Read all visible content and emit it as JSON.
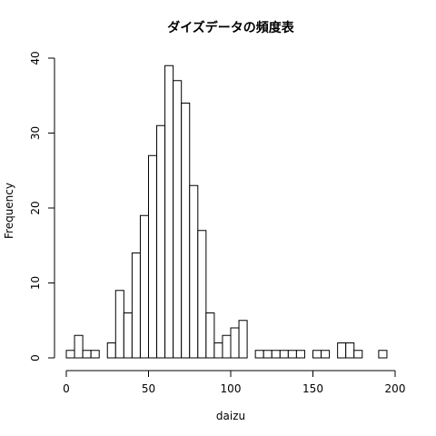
{
  "chart_data": {
    "type": "bar",
    "title": "ダイズデータの頻度表",
    "xlabel": "daizu",
    "ylabel": "Frequency",
    "bin_width": 5,
    "bins": [
      {
        "start": 0,
        "end": 5,
        "count": 1
      },
      {
        "start": 5,
        "end": 10,
        "count": 3
      },
      {
        "start": 10,
        "end": 15,
        "count": 1
      },
      {
        "start": 15,
        "end": 20,
        "count": 1
      },
      {
        "start": 20,
        "end": 25,
        "count": 0
      },
      {
        "start": 25,
        "end": 30,
        "count": 2
      },
      {
        "start": 30,
        "end": 35,
        "count": 9
      },
      {
        "start": 35,
        "end": 40,
        "count": 6
      },
      {
        "start": 40,
        "end": 45,
        "count": 14
      },
      {
        "start": 45,
        "end": 50,
        "count": 19
      },
      {
        "start": 50,
        "end": 55,
        "count": 27
      },
      {
        "start": 55,
        "end": 60,
        "count": 31
      },
      {
        "start": 60,
        "end": 65,
        "count": 39
      },
      {
        "start": 65,
        "end": 70,
        "count": 37
      },
      {
        "start": 70,
        "end": 75,
        "count": 34
      },
      {
        "start": 75,
        "end": 80,
        "count": 23
      },
      {
        "start": 80,
        "end": 85,
        "count": 17
      },
      {
        "start": 85,
        "end": 90,
        "count": 6
      },
      {
        "start": 90,
        "end": 95,
        "count": 2
      },
      {
        "start": 95,
        "end": 100,
        "count": 3
      },
      {
        "start": 100,
        "end": 105,
        "count": 4
      },
      {
        "start": 105,
        "end": 110,
        "count": 5
      },
      {
        "start": 110,
        "end": 115,
        "count": 0
      },
      {
        "start": 115,
        "end": 120,
        "count": 1
      },
      {
        "start": 120,
        "end": 125,
        "count": 1
      },
      {
        "start": 125,
        "end": 130,
        "count": 1
      },
      {
        "start": 130,
        "end": 135,
        "count": 1
      },
      {
        "start": 135,
        "end": 140,
        "count": 1
      },
      {
        "start": 140,
        "end": 145,
        "count": 1
      },
      {
        "start": 145,
        "end": 150,
        "count": 0
      },
      {
        "start": 150,
        "end": 155,
        "count": 1
      },
      {
        "start": 155,
        "end": 160,
        "count": 1
      },
      {
        "start": 160,
        "end": 165,
        "count": 0
      },
      {
        "start": 165,
        "end": 170,
        "count": 2
      },
      {
        "start": 170,
        "end": 175,
        "count": 2
      },
      {
        "start": 175,
        "end": 180,
        "count": 1
      },
      {
        "start": 180,
        "end": 185,
        "count": 0
      },
      {
        "start": 185,
        "end": 190,
        "count": 0
      },
      {
        "start": 190,
        "end": 195,
        "count": 1
      }
    ],
    "xlim": [
      0,
      200
    ],
    "ylim": [
      0,
      40
    ],
    "x_ticks": [
      0,
      50,
      100,
      150,
      200
    ],
    "y_ticks": [
      0,
      10,
      20,
      30,
      40
    ],
    "grid": false,
    "legend": "none",
    "bar_fill": "#ffffff",
    "bar_stroke": "#000000"
  }
}
